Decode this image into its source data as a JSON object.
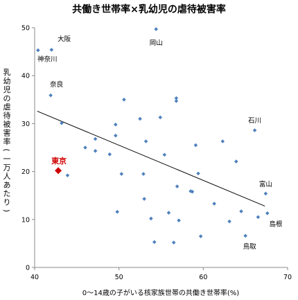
{
  "chart_data": {
    "type": "scatter",
    "title": "共働き世帯率×乳幼児の虐待被害率",
    "xlabel": "0〜14歳の子がいる核家族世帯の共働き世帯率(%)",
    "ylabel": "乳幼児の虐待被害率(一万人あたり)",
    "xlim": [
      40,
      70
    ],
    "ylim": [
      0,
      50
    ],
    "xticks": [
      "40",
      "50",
      "60",
      "70"
    ],
    "yticks": [
      "0",
      "10",
      "20",
      "30",
      "40",
      "50"
    ],
    "grid": false,
    "marker_color": "#4f81bd",
    "highlight_color": "#d00000",
    "trendline": {
      "x": [
        40.3,
        67.3
      ],
      "y": [
        32.6,
        12.8
      ]
    },
    "points": [
      {
        "x": 40.4,
        "y": 45.3
      },
      {
        "x": 42.0,
        "y": 45.4
      },
      {
        "x": 54.4,
        "y": 49.7
      },
      {
        "x": 41.9,
        "y": 35.9
      },
      {
        "x": 43.2,
        "y": 30.1
      },
      {
        "x": 50.6,
        "y": 35.0
      },
      {
        "x": 56.8,
        "y": 35.3
      },
      {
        "x": 56.8,
        "y": 34.7
      },
      {
        "x": 52.5,
        "y": 31.0
      },
      {
        "x": 54.9,
        "y": 31.3
      },
      {
        "x": 49.6,
        "y": 29.8
      },
      {
        "x": 49.6,
        "y": 27.5
      },
      {
        "x": 47.2,
        "y": 26.8
      },
      {
        "x": 53.2,
        "y": 26.3
      },
      {
        "x": 62.3,
        "y": 26.3
      },
      {
        "x": 66.1,
        "y": 28.6
      },
      {
        "x": 59.1,
        "y": 25.5
      },
      {
        "x": 46.0,
        "y": 25.0
      },
      {
        "x": 47.2,
        "y": 24.3
      },
      {
        "x": 48.9,
        "y": 23.6
      },
      {
        "x": 55.4,
        "y": 23.5
      },
      {
        "x": 63.9,
        "y": 22.1
      },
      {
        "x": 43.9,
        "y": 19.2
      },
      {
        "x": 50.3,
        "y": 19.5
      },
      {
        "x": 52.9,
        "y": 19.5
      },
      {
        "x": 59.4,
        "y": 19.6
      },
      {
        "x": 56.9,
        "y": 16.9
      },
      {
        "x": 58.5,
        "y": 15.9
      },
      {
        "x": 58.7,
        "y": 15.8
      },
      {
        "x": 67.4,
        "y": 15.4
      },
      {
        "x": 53.0,
        "y": 14.3
      },
      {
        "x": 61.3,
        "y": 13.3
      },
      {
        "x": 49.8,
        "y": 11.6
      },
      {
        "x": 55.9,
        "y": 11.4
      },
      {
        "x": 64.5,
        "y": 11.7
      },
      {
        "x": 67.6,
        "y": 11.3
      },
      {
        "x": 53.8,
        "y": 10.2
      },
      {
        "x": 57.1,
        "y": 9.8
      },
      {
        "x": 63.1,
        "y": 9.6
      },
      {
        "x": 66.5,
        "y": 10.5
      },
      {
        "x": 59.7,
        "y": 6.5
      },
      {
        "x": 65.0,
        "y": 6.6
      },
      {
        "x": 54.2,
        "y": 5.3
      },
      {
        "x": 56.5,
        "y": 5.2
      }
    ],
    "highlight": {
      "x": 42.8,
      "y": 20.2,
      "label": "東京"
    },
    "annotations": [
      {
        "text": "大阪",
        "x": 43.5,
        "y": 47.2,
        "anchor": "middle"
      },
      {
        "text": "神奈川",
        "x": 41.5,
        "y": 43.0,
        "anchor": "middle"
      },
      {
        "text": "岡山",
        "x": 54.4,
        "y": 46.4,
        "anchor": "middle"
      },
      {
        "text": "奈良",
        "x": 42.6,
        "y": 37.7,
        "anchor": "middle"
      },
      {
        "text": "石川",
        "x": 66.1,
        "y": 30.2,
        "anchor": "middle"
      },
      {
        "text": "富山",
        "x": 67.4,
        "y": 16.9,
        "anchor": "middle"
      },
      {
        "text": "島根",
        "x": 68.6,
        "y": 8.6,
        "anchor": "middle"
      },
      {
        "text": "鳥取",
        "x": 65.5,
        "y": 3.9,
        "anchor": "middle"
      }
    ]
  }
}
